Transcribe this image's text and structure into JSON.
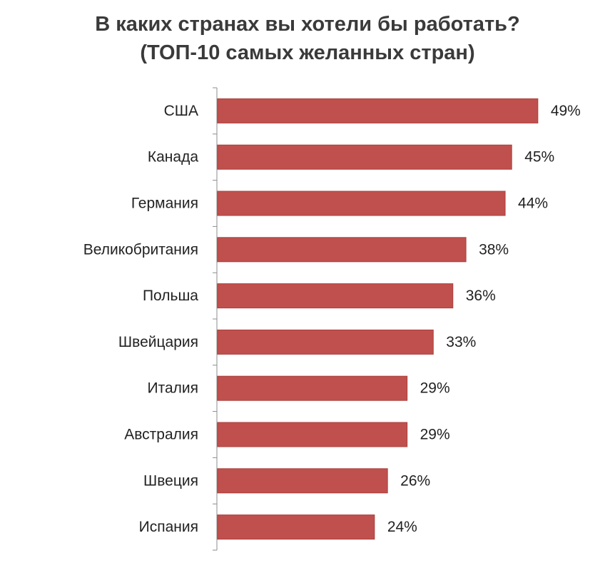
{
  "chart_data": {
    "type": "bar",
    "orientation": "horizontal",
    "title": "В каких странах вы хотели бы работать?",
    "subtitle": "(ТОП-10 самых желанных стран)",
    "categories": [
      "США",
      "Канада",
      "Германия",
      "Великобритания",
      "Польша",
      "Швейцария",
      "Италия",
      "Австралия",
      "Швеция",
      "Испания"
    ],
    "values": [
      49,
      45,
      44,
      38,
      36,
      33,
      29,
      29,
      26,
      24
    ],
    "value_labels": [
      "49%",
      "45%",
      "44%",
      "38%",
      "36%",
      "33%",
      "29%",
      "29%",
      "26%",
      "24%"
    ],
    "unit": "%",
    "xlim": [
      0,
      50
    ],
    "grid": false,
    "legend": "none",
    "bar_color": "#c0504d"
  }
}
